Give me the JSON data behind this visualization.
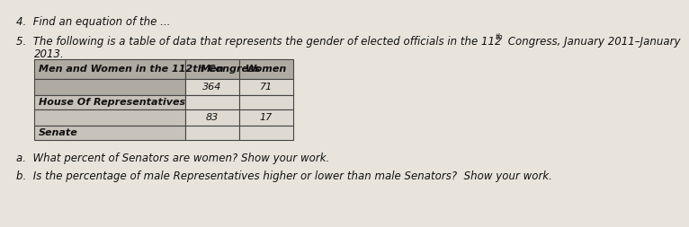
{
  "item4_text": "4.  Find an equation of the ...",
  "item5_line1a": "5.  The following is a table of data that represents the gender of elected officials in the 112",
  "item5_super": "th",
  "item5_line1b": " Congress, January 2011–January",
  "item5_line2": "2013.",
  "table_header_col0": "Men and Women in the 112th Congress",
  "table_header_col1": "Men",
  "table_header_col2": "Women",
  "table_row1_col0": "House Of Representatives",
  "table_row1_col1": "364",
  "table_row1_col2": "71",
  "table_row2_col0": "Senate",
  "table_row2_col1": "83",
  "table_row2_col2": "17",
  "question_a": "a.  What percent of Senators are women? Show your work.",
  "question_b": "b.  Is the percentage of male Representatives higher or lower than male Senators?  Show your work.",
  "bg_color": "#e8e4dc",
  "table_header_bg": "#b0aba2",
  "table_label_bg": "#c8c3ba",
  "table_data_bg": "#dedad2",
  "table_border_color": "#444444",
  "text_color": "#111111"
}
